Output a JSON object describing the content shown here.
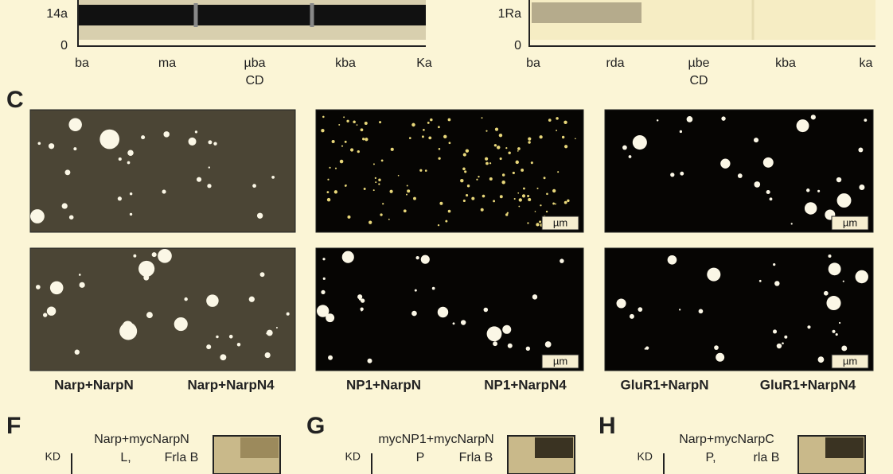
{
  "top_panels": [
    {
      "y_labels": [
        "14a",
        "0"
      ],
      "x_labels": [
        "ba",
        "ma",
        "µba",
        "kba",
        "Ka"
      ],
      "x_title": "CD"
    },
    {
      "y_labels": [
        "1Ra",
        "0"
      ],
      "x_labels": [
        "ba",
        "rda",
        "µbe",
        "kba",
        "ka"
      ],
      "x_title": "CD"
    }
  ],
  "panel_c": {
    "label": "C",
    "scale_labels": [
      "µm",
      "µm",
      "µm",
      "µm"
    ],
    "captions": [
      "Narp+NarpN",
      "Narp+NarpN4",
      "NP1+NarpN",
      "NP1+NarpN4",
      "GluR1+NarpN",
      "GluR1+NarpN4"
    ]
  },
  "bottom_panels": [
    {
      "label": "F",
      "kd": "KD",
      "title": "Narp+mycNarpN",
      "lane_1": "L,",
      "lane_2": "Frla B"
    },
    {
      "label": "G",
      "kd": "KD",
      "title": "mycNP1+mycNarpN",
      "lane_1": "P",
      "lane_2": "Frla B"
    },
    {
      "label": "H",
      "kd": "KD",
      "title": "Narp+mycNarpC",
      "lane_1": "P,",
      "lane_2": "rla B"
    }
  ]
}
